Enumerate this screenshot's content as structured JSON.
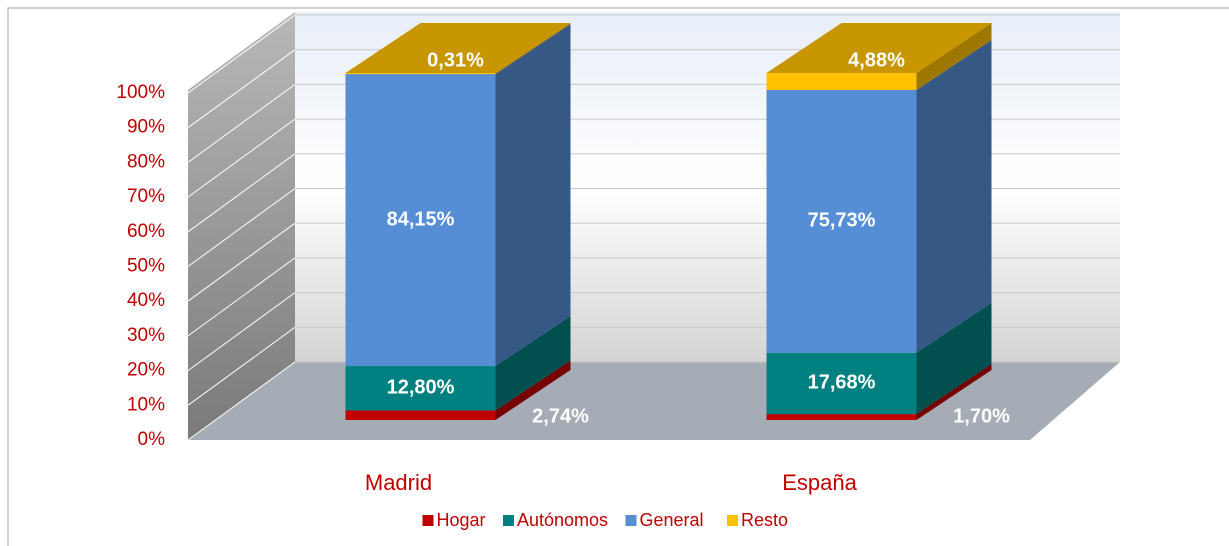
{
  "chart_data": {
    "type": "bar3d_stacked",
    "categories": [
      "Madrid",
      "España"
    ],
    "series": [
      {
        "name": "Hogar",
        "color": "#c00000",
        "values": [
          2.74,
          1.7
        ],
        "value_labels": [
          "2,74%",
          "1,70%"
        ]
      },
      {
        "name": "Autónomos",
        "color": "#008080",
        "values": [
          12.8,
          17.68
        ],
        "value_labels": [
          "12,80%",
          "17,68%"
        ]
      },
      {
        "name": "General",
        "color": "#558ed5",
        "values": [
          84.15,
          75.73
        ],
        "value_labels": [
          "84,15%",
          "75,73%"
        ]
      },
      {
        "name": "Resto",
        "color": "#ffc000",
        "values": [
          0.31,
          4.88
        ],
        "value_labels": [
          "0,31%",
          "4,88%"
        ]
      }
    ],
    "ylim": [
      0,
      100
    ],
    "yticks": [
      {
        "value": 0,
        "label": "0%"
      },
      {
        "value": 10,
        "label": "10%"
      },
      {
        "value": 20,
        "label": "20%"
      },
      {
        "value": 30,
        "label": "30%"
      },
      {
        "value": 40,
        "label": "40%"
      },
      {
        "value": 50,
        "label": "50%"
      },
      {
        "value": 60,
        "label": "60%"
      },
      {
        "value": 70,
        "label": "70%"
      },
      {
        "value": 80,
        "label": "80%"
      },
      {
        "value": 90,
        "label": "90%"
      },
      {
        "value": 100,
        "label": "100%"
      }
    ],
    "grid": true,
    "legend": "bottom"
  }
}
